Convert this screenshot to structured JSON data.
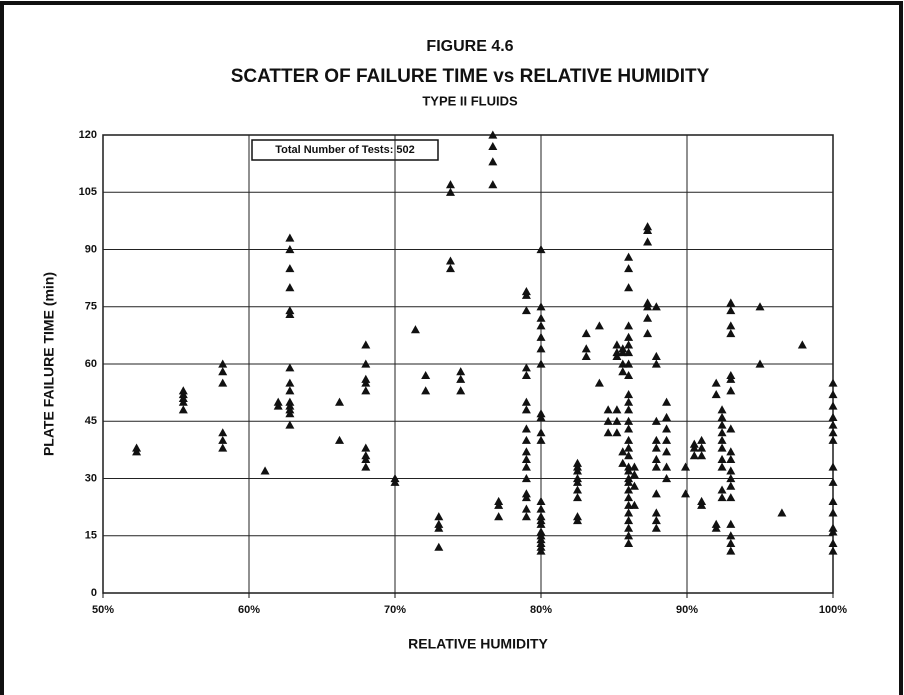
{
  "chart_data": {
    "type": "scatter",
    "title": "FIGURE 4.6",
    "subtitle": "SCATTER OF FAILURE TIME vs RELATIVE HUMIDITY",
    "subtitle2": "TYPE II FLUIDS",
    "annotation": "Total Number of Tests: 502",
    "xlabel": "RELATIVE HUMIDITY",
    "ylabel": "PLATE FAILURE TIME (min)",
    "color": "#111111",
    "grid": true,
    "xlim": [
      50,
      100
    ],
    "xticks": [
      {
        "value": 50,
        "label": "50%"
      },
      {
        "value": 60,
        "label": "60%"
      },
      {
        "value": 70,
        "label": "70%"
      },
      {
        "value": 80,
        "label": "80%"
      },
      {
        "value": 90,
        "label": "90%"
      },
      {
        "value": 100,
        "label": "100%"
      }
    ],
    "ylim": [
      0,
      120
    ],
    "yticks": [
      0,
      15,
      30,
      45,
      60,
      75,
      90,
      105,
      120
    ],
    "x": [
      52.3,
      52.3,
      55.5,
      55.5,
      55.5,
      55.5,
      55.5,
      58.2,
      58.2,
      58.2,
      58.2,
      58.2,
      58.2,
      61.1,
      62,
      62,
      62.8,
      62.8,
      62.8,
      62.8,
      62.8,
      62.8,
      62.8,
      62.8,
      62.8,
      62.8,
      62.8,
      62.8,
      62.8,
      62.8,
      66.2,
      66.2,
      68,
      68,
      68,
      68,
      68,
      68,
      68,
      68,
      68,
      70,
      70,
      71.4,
      72.1,
      72.1,
      73,
      73,
      73,
      73,
      73.8,
      73.8,
      73.8,
      73.8,
      74.5,
      74.5,
      74.5,
      76.7,
      76.7,
      76.7,
      76.7,
      77.1,
      77.1,
      77.1,
      79,
      79,
      79,
      79,
      79,
      79,
      79,
      79,
      79,
      79,
      79,
      79,
      79,
      79,
      79,
      79,
      79,
      80,
      80,
      80,
      80,
      80,
      80,
      80,
      80,
      80,
      80,
      80,
      80,
      80,
      80,
      80,
      80,
      80,
      80,
      80,
      80,
      80,
      80,
      82.5,
      82.5,
      82.5,
      82.5,
      82.5,
      82.5,
      82.5,
      82.5,
      82.5,
      83.1,
      83.1,
      83.1,
      84,
      84,
      84.6,
      84.6,
      84.6,
      85.2,
      85.2,
      85.2,
      85.2,
      85.2,
      85.2,
      85.6,
      85.6,
      85.6,
      85.6,
      85.6,
      85.6,
      86,
      86,
      86,
      86,
      86,
      86,
      86,
      86,
      86,
      86,
      86,
      86,
      86,
      86,
      86,
      86,
      86,
      86,
      86,
      86,
      86,
      86,
      86,
      86,
      86,
      86,
      86,
      86,
      86,
      86.4,
      86.4,
      86.4,
      86.4,
      87.3,
      87.3,
      87.3,
      87.3,
      87.3,
      87.3,
      87.3,
      87.9,
      87.9,
      87.9,
      87.9,
      87.9,
      87.9,
      87.9,
      87.9,
      87.9,
      87.9,
      87.9,
      87.9,
      88.6,
      88.6,
      88.6,
      88.6,
      88.6,
      88.6,
      88.6,
      89.9,
      89.9,
      90.5,
      90.5,
      90.5,
      91,
      91,
      91,
      91,
      91,
      92,
      92,
      92,
      92,
      92.4,
      92.4,
      92.4,
      92.4,
      92.4,
      92.4,
      92.4,
      92.4,
      92.4,
      92.4,
      93,
      93,
      93,
      93,
      93,
      93,
      93,
      93,
      93,
      93,
      93,
      93,
      93,
      93,
      93,
      93,
      93,
      93,
      95,
      95,
      96.5,
      97.9,
      100,
      100,
      100,
      100,
      100,
      100,
      100,
      100,
      100,
      100,
      100,
      100,
      100,
      100,
      100
    ],
    "values": [
      37,
      38,
      48,
      50,
      51,
      52,
      53,
      38,
      40,
      42,
      55,
      58,
      60,
      32,
      49,
      50,
      44,
      47,
      48,
      49,
      50,
      53,
      55,
      59,
      73,
      74,
      80,
      85,
      90,
      93,
      40,
      50,
      33,
      35,
      36,
      38,
      53,
      55,
      56,
      60,
      65,
      29,
      30,
      69,
      53,
      57,
      12,
      17,
      18,
      20,
      85,
      87,
      105,
      107,
      53,
      56,
      58,
      107,
      113,
      117,
      120,
      20,
      23,
      24,
      20,
      22,
      25,
      26,
      30,
      33,
      35,
      37,
      40,
      43,
      48,
      50,
      57,
      59,
      74,
      78,
      79,
      11,
      12,
      13,
      14,
      15,
      16,
      18,
      19,
      20,
      22,
      24,
      40,
      42,
      46,
      47,
      60,
      64,
      67,
      70,
      72,
      75,
      90,
      19,
      20,
      25,
      27,
      29,
      30,
      32,
      33,
      34,
      62,
      64,
      68,
      55,
      70,
      42,
      45,
      48,
      42,
      45,
      48,
      62,
      63,
      65,
      34,
      37,
      58,
      60,
      63,
      64,
      13,
      15,
      17,
      19,
      21,
      23,
      25,
      27,
      29,
      30,
      32,
      33,
      36,
      38,
      40,
      43,
      45,
      48,
      50,
      52,
      57,
      60,
      63,
      65,
      67,
      70,
      80,
      85,
      88,
      23,
      28,
      31,
      33,
      68,
      72,
      75,
      76,
      92,
      95,
      96,
      17,
      19,
      21,
      26,
      33,
      35,
      38,
      40,
      45,
      60,
      62,
      75,
      30,
      33,
      37,
      40,
      43,
      46,
      50,
      26,
      33,
      36,
      38,
      39,
      23,
      24,
      36,
      38,
      40,
      17,
      18,
      52,
      55,
      25,
      27,
      33,
      35,
      38,
      40,
      42,
      44,
      46,
      48,
      11,
      13,
      15,
      18,
      25,
      28,
      30,
      32,
      35,
      37,
      43,
      53,
      56,
      57,
      68,
      70,
      74,
      76,
      60,
      75,
      21,
      65,
      11,
      13,
      16,
      17,
      21,
      24,
      29,
      33,
      40,
      42,
      44,
      46,
      49,
      52,
      55
    ]
  }
}
